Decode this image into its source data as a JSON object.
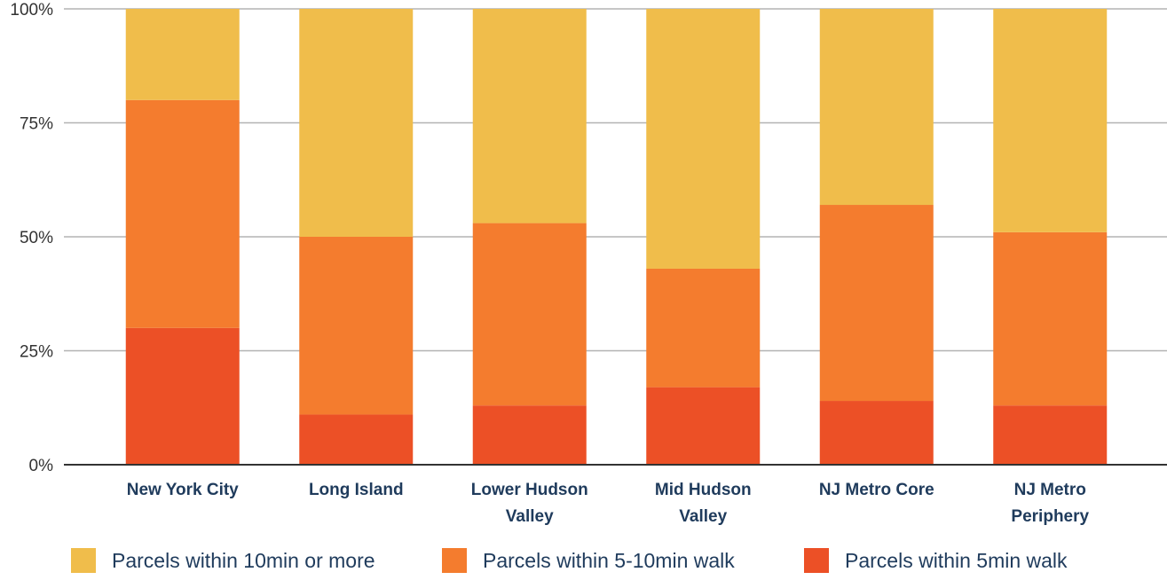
{
  "chart_data": {
    "type": "bar",
    "stacked": true,
    "normalized": true,
    "categories": [
      [
        "New York City"
      ],
      [
        "Long Island"
      ],
      [
        "Lower Hudson",
        "Valley"
      ],
      [
        "Mid Hudson",
        "Valley"
      ],
      [
        "NJ Metro Core"
      ],
      [
        "NJ Metro",
        "Periphery"
      ]
    ],
    "series": [
      {
        "name": "Parcels within 5min walk",
        "color": "#ec5026",
        "values": [
          30,
          11,
          13,
          17,
          14,
          13
        ]
      },
      {
        "name": "Parcels within 5-10min walk",
        "color": "#f47c2e",
        "values": [
          50,
          39,
          40,
          26,
          43,
          38
        ]
      },
      {
        "name": "Parcels within 10min or more",
        "color": "#f0bd4b",
        "values": [
          20,
          50,
          47,
          57,
          43,
          49
        ]
      }
    ],
    "yticks": [
      "0%",
      "25%",
      "50%",
      "75%",
      "100%"
    ],
    "ylim": [
      0,
      100
    ],
    "grid": true,
    "legend_position": "bottom"
  },
  "legend": {
    "items": [
      {
        "label": "Parcels within 10min or more",
        "color": "#f0bd4b"
      },
      {
        "label": "Parcels within 5-10min walk",
        "color": "#f47c2e"
      },
      {
        "label": "Parcels within 5min walk",
        "color": "#ec5026"
      }
    ]
  }
}
